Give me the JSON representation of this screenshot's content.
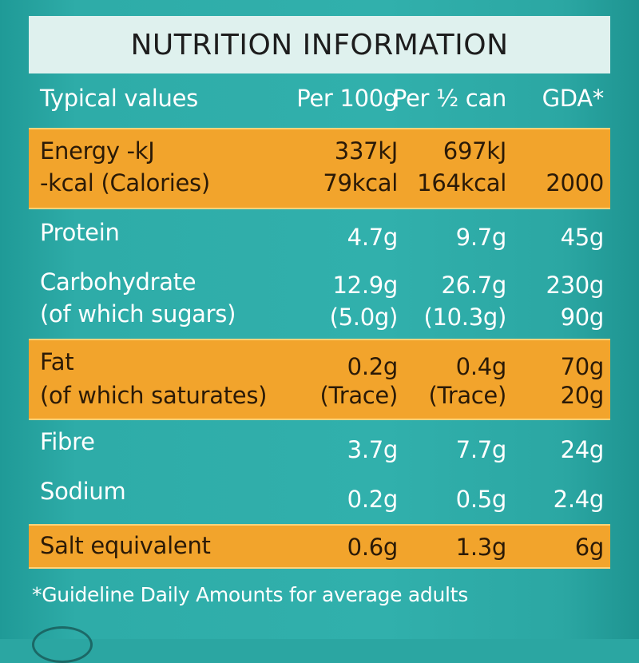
{
  "title": "NUTRITION INFORMATION",
  "header": {
    "label": "Typical values",
    "col1": "Per 100g",
    "col2": "Per ½ can",
    "col3": "GDA*"
  },
  "rows": [
    {
      "lines": [
        {
          "label": "Energy -kJ",
          "c1": "337kJ",
          "c2": "697kJ",
          "c3": ""
        },
        {
          "label": "-kcal (Calories)",
          "c1": "79kcal",
          "c2": "164kcal",
          "c3": "2000"
        }
      ],
      "highlight": true
    },
    {
      "lines": [
        {
          "label": "Protein",
          "c1": "4.7g",
          "c2": "9.7g",
          "c3": "45g"
        }
      ],
      "highlight": false
    },
    {
      "lines": [
        {
          "label": "Carbohydrate",
          "c1": "12.9g",
          "c2": "26.7g",
          "c3": "230g"
        },
        {
          "label": "(of which sugars)",
          "c1": "(5.0g)",
          "c2": "(10.3g)",
          "c3": "90g"
        }
      ],
      "highlight": false
    },
    {
      "lines": [
        {
          "label": "Fat",
          "c1": "0.2g",
          "c2": "0.4g",
          "c3": "70g"
        },
        {
          "label": "(of which saturates)",
          "c1": "(Trace)",
          "c2": "(Trace)",
          "c3": "20g"
        }
      ],
      "highlight": true
    },
    {
      "lines": [
        {
          "label": "Fibre",
          "c1": "3.7g",
          "c2": "7.7g",
          "c3": "24g"
        }
      ],
      "highlight": false
    },
    {
      "lines": [
        {
          "label": "Sodium",
          "c1": "0.2g",
          "c2": "0.5g",
          "c3": "2.4g"
        }
      ],
      "highlight": false
    },
    {
      "lines": [
        {
          "label": "Salt equivalent",
          "c1": "0.6g",
          "c2": "1.3g",
          "c3": "6g"
        }
      ],
      "highlight": true
    }
  ],
  "footnote": "*Guideline Daily Amounts for average adults",
  "colors": {
    "background": "#2ba6a2",
    "highlight": "#f2a42c",
    "title_box": "#dff1ee"
  }
}
